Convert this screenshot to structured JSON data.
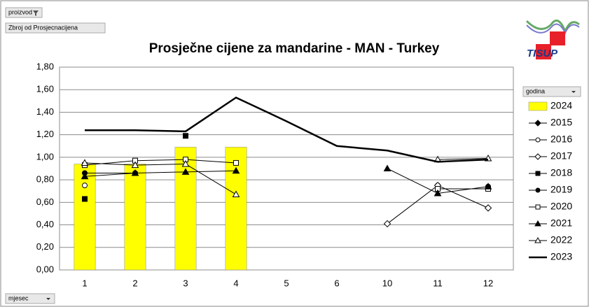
{
  "filter_button": "proizvod",
  "value_field": "Zbroj od Prosjecnacijena",
  "legend_field": "godina",
  "axis_field": "mjesec",
  "logo": "TISUP",
  "chart_data": {
    "type": "combo",
    "title": "Prosječne cijene za mandarine - MAN - Turkey",
    "categories": [
      "1",
      "2",
      "3",
      "4",
      "5",
      "6",
      "10",
      "11",
      "12"
    ],
    "ylim": [
      0,
      1.8
    ],
    "yticks": [
      {
        "value": 0,
        "label": "0,00"
      },
      {
        "value": 0.2,
        "label": "0,20"
      },
      {
        "value": 0.4,
        "label": "0,40"
      },
      {
        "value": 0.6,
        "label": "0,60"
      },
      {
        "value": 0.8,
        "label": "0,80"
      },
      {
        "value": 1,
        "label": "1,00"
      },
      {
        "value": 1.2,
        "label": "1,20"
      },
      {
        "value": 1.4,
        "label": "1,40"
      },
      {
        "value": 1.6,
        "label": "1,60"
      },
      {
        "value": 1.8,
        "label": "1,80"
      }
    ],
    "grid": true,
    "legend": "right",
    "series": [
      {
        "name": "2024",
        "kind": "bar",
        "color": "#ffff00",
        "values": [
          0.94,
          0.94,
          1.09,
          1.09,
          null,
          null,
          null,
          null,
          null
        ]
      },
      {
        "name": "2015",
        "kind": "line",
        "marker": "diamond",
        "filled": true,
        "color": "#000000",
        "values": [
          null,
          null,
          null,
          null,
          null,
          null,
          null,
          null,
          null
        ]
      },
      {
        "name": "2016",
        "kind": "line",
        "marker": "circle",
        "filled": false,
        "color": "#000000",
        "values": [
          0.75,
          null,
          null,
          null,
          null,
          null,
          null,
          0.75,
          null
        ]
      },
      {
        "name": "2017",
        "kind": "line",
        "marker": "diamond",
        "filled": false,
        "color": "#000000",
        "values": [
          null,
          null,
          null,
          null,
          null,
          null,
          0.41,
          0.75,
          0.55
        ]
      },
      {
        "name": "2018",
        "kind": "line",
        "marker": "square",
        "filled": true,
        "color": "#000000",
        "values": [
          0.63,
          null,
          1.19,
          null,
          null,
          null,
          null,
          null,
          null
        ]
      },
      {
        "name": "2019",
        "kind": "line",
        "marker": "circle",
        "filled": true,
        "color": "#000000",
        "values": [
          0.86,
          0.86,
          null,
          null,
          null,
          null,
          null,
          null,
          0.74
        ]
      },
      {
        "name": "2020",
        "kind": "line",
        "marker": "square",
        "filled": false,
        "color": "#000000",
        "values": [
          0.93,
          0.97,
          0.98,
          0.95,
          null,
          null,
          null,
          0.72,
          0.72
        ]
      },
      {
        "name": "2021",
        "kind": "line",
        "marker": "triangle",
        "filled": true,
        "color": "#000000",
        "values": [
          0.83,
          0.86,
          0.87,
          0.88,
          null,
          null,
          0.9,
          0.68,
          0.74
        ]
      },
      {
        "name": "2022",
        "kind": "line",
        "marker": "triangle",
        "filled": false,
        "color": "#000000",
        "values": [
          0.95,
          0.93,
          0.94,
          0.67,
          null,
          null,
          null,
          0.98,
          0.99
        ]
      },
      {
        "name": "2023",
        "kind": "line",
        "marker": "none",
        "color": "#000000",
        "values": [
          1.24,
          1.24,
          1.23,
          1.53,
          1.32,
          1.1,
          1.06,
          0.96,
          0.98
        ]
      }
    ]
  }
}
